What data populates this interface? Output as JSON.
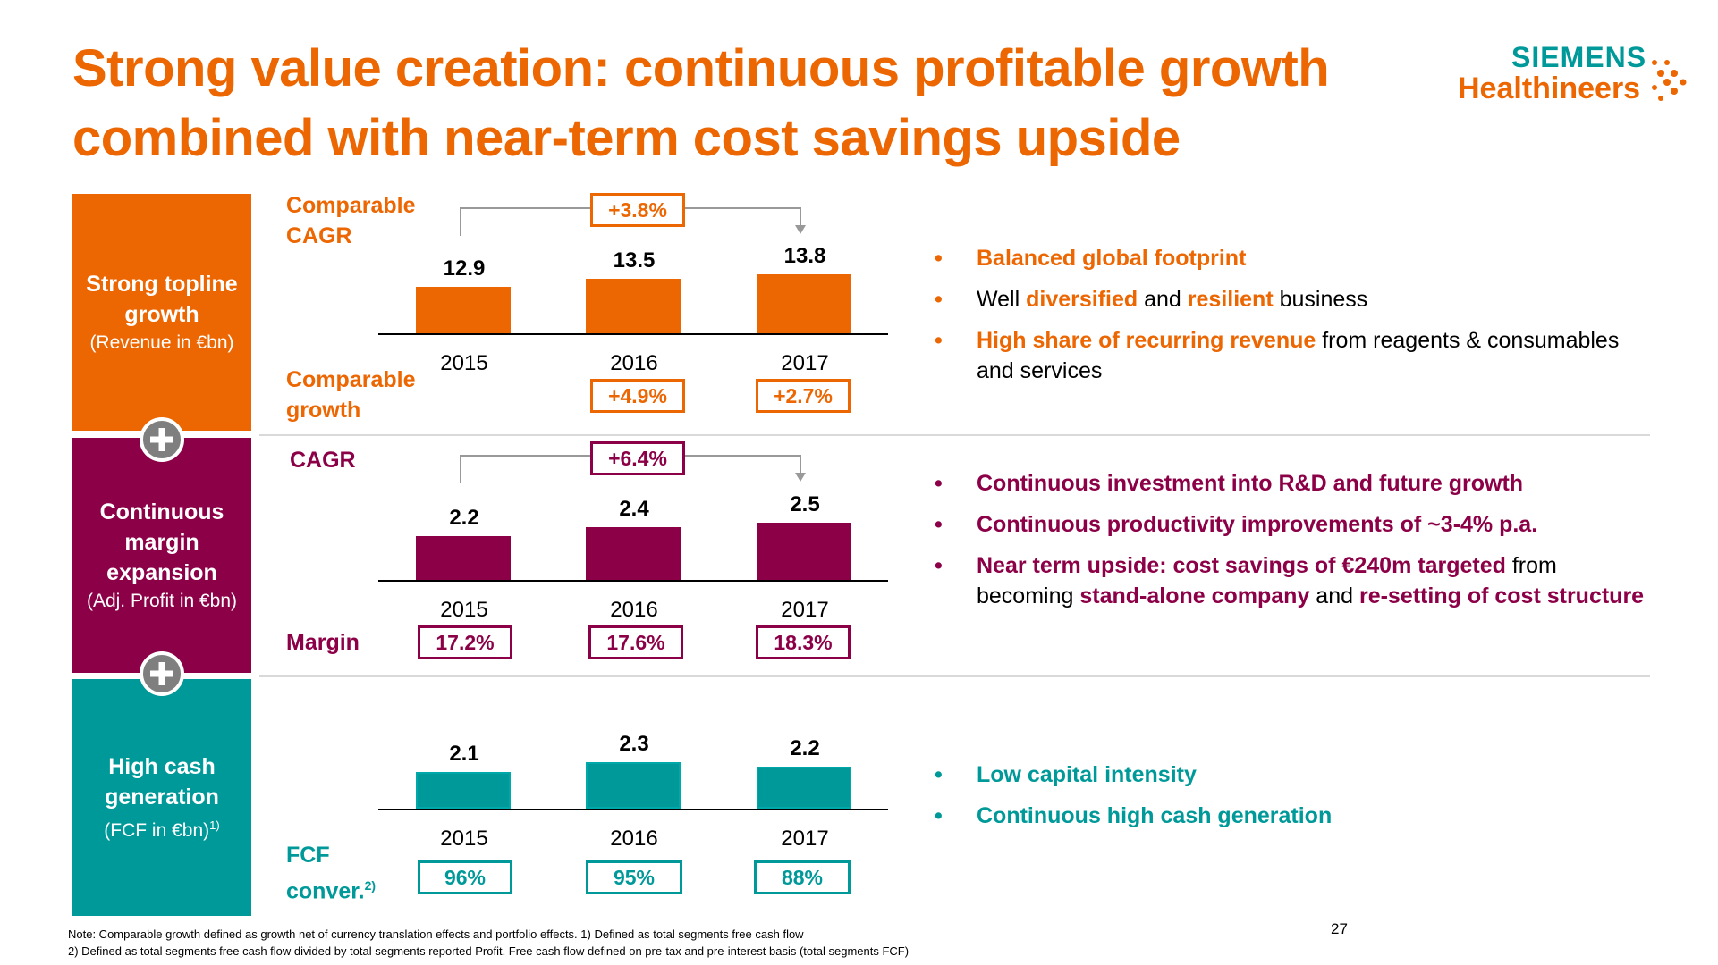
{
  "title": {
    "line1": "Strong value creation: continuous profitable growth",
    "line2": "combined with near-term cost savings upside"
  },
  "logo": {
    "top": "SIEMENS",
    "bottom": "Healthineers"
  },
  "colors": {
    "orange": "#ec6602",
    "magenta": "#8c0047",
    "teal": "#009999",
    "grey": "#999999"
  },
  "rows": [
    {
      "heading": "Strong topline growth",
      "sub": "(Revenue in €bn)"
    },
    {
      "heading": "Continuous margin expansion",
      "sub": "(Adj. Profit in €bn)"
    },
    {
      "heading": "High cash generation",
      "sub": "(FCF in €bn)",
      "sup": "1)"
    }
  ],
  "labels": {
    "comparable_cagr_1": "Comparable",
    "comparable_cagr_2": "CAGR",
    "comparable_growth_1": "Comparable",
    "comparable_growth_2": "growth",
    "cagr": "CAGR",
    "margin": "Margin",
    "fcf_1": "FCF",
    "fcf_2": "conver.",
    "fcf_sup": "2)"
  },
  "chart_data": [
    {
      "type": "bar",
      "title": "Revenue in €bn",
      "categories": [
        "2015",
        "2016",
        "2017"
      ],
      "values": [
        12.9,
        13.5,
        13.8
      ],
      "value_labels": [
        "12.9",
        "13.5",
        "13.8"
      ],
      "cagr": "+3.8%",
      "growth_labels": [
        "",
        "+4.9%",
        "+2.7%"
      ],
      "ylim": [
        0,
        14
      ]
    },
    {
      "type": "bar",
      "title": "Adj. Profit in €bn",
      "categories": [
        "2015",
        "2016",
        "2017"
      ],
      "values": [
        2.2,
        2.4,
        2.5
      ],
      "value_labels": [
        "2.2",
        "2.4",
        "2.5"
      ],
      "cagr": "+6.4%",
      "margin_labels": [
        "17.2%",
        "17.6%",
        "18.3%"
      ],
      "ylim": [
        0,
        2.6
      ]
    },
    {
      "type": "bar",
      "title": "FCF in €bn",
      "categories": [
        "2015",
        "2016",
        "2017"
      ],
      "values": [
        2.1,
        2.3,
        2.2
      ],
      "value_labels": [
        "2.1",
        "2.3",
        "2.2"
      ],
      "conversion_labels": [
        "96%",
        "95%",
        "88%"
      ],
      "ylim": [
        0,
        2.4
      ]
    }
  ],
  "bullets": {
    "row1": {
      "b1": "Balanced global footprint",
      "b2_a": "Well ",
      "b2_b": "diversified",
      "b2_c": " and ",
      "b2_d": "resilient",
      "b2_e": " business",
      "b3_a": "High share of recurring revenue",
      "b3_b": " from reagents & consumables and services"
    },
    "row2": {
      "b1": "Continuous investment into R&D and future growth",
      "b2": "Continuous productivity improvements of ~3-4% p.a.",
      "b3_a": "Near term upside: cost savings of €240m targeted",
      "b3_b": " from becoming ",
      "b3_c": "stand-alone company",
      "b3_d": " and ",
      "b3_e": "re-setting of cost structure"
    },
    "row3": {
      "b1": "Low capital intensity",
      "b2": "Continuous high cash generation"
    },
    "dot": "•"
  },
  "footnote": {
    "line1": "Note: Comparable growth defined as growth net of currency translation effects and portfolio effects. 1) Defined as total segments free cash flow",
    "line2": "2) Defined as total segments free cash flow divided by total segments reported Profit. Free cash flow defined on pre-tax and pre-interest basis (total segments FCF)"
  },
  "page_number": "27"
}
